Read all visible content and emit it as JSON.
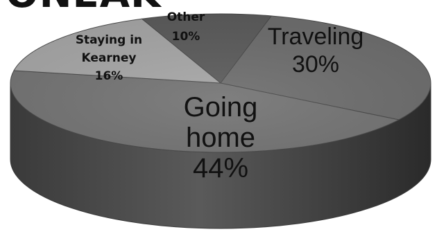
{
  "heading_fragment": "ONEAK",
  "chart_data": {
    "type": "pie",
    "title": "",
    "three_d": true,
    "slices": [
      {
        "label": "Traveling",
        "value": 30,
        "value_label": "30%",
        "color": "#6e6e6e"
      },
      {
        "label": "Going home",
        "label_lines": [
          "Going",
          "home"
        ],
        "value": 44,
        "value_label": "44%",
        "color": "#747474"
      },
      {
        "label": "Staying in Kearney",
        "label_lines": [
          "Staying in",
          "Kearney"
        ],
        "value": 16,
        "value_label": "16%",
        "color": "#a6a6a6"
      },
      {
        "label": "Other",
        "value": 10,
        "value_label": "10%",
        "color": "#5c5c5c"
      }
    ],
    "legend": "none",
    "colors": {
      "side_dark": "#2e2e2e",
      "side_mid": "#555555",
      "label_dark": "#111111",
      "label_light": "#f2f2f2"
    }
  }
}
